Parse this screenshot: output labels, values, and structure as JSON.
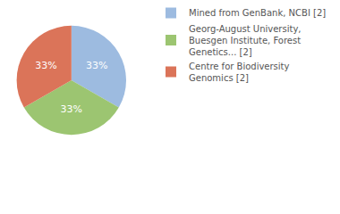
{
  "chart_data": {
    "type": "pie",
    "categories": [
      "Mined from GenBank, NCBI [2]",
      "Georg-August University, Buesgen Institute, Forest Genetics... [2]",
      "Centre for Biodiversity Genomics [2]"
    ],
    "values": [
      33,
      33,
      33
    ],
    "value_labels": [
      "33%",
      "33%",
      "33%"
    ],
    "data_labels": true,
    "colors": [
      "#9dbbe0",
      "#9cc571",
      "#db7459"
    ],
    "legend": "top right"
  }
}
